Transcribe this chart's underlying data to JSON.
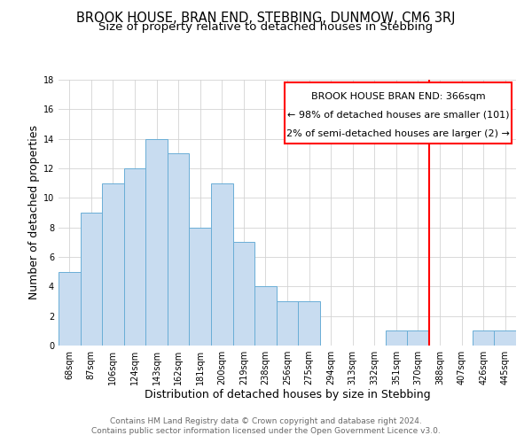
{
  "title": "BROOK HOUSE, BRAN END, STEBBING, DUNMOW, CM6 3RJ",
  "subtitle": "Size of property relative to detached houses in Stebbing",
  "xlabel": "Distribution of detached houses by size in Stebbing",
  "ylabel": "Number of detached properties",
  "bin_labels": [
    "68sqm",
    "87sqm",
    "106sqm",
    "124sqm",
    "143sqm",
    "162sqm",
    "181sqm",
    "200sqm",
    "219sqm",
    "238sqm",
    "256sqm",
    "275sqm",
    "294sqm",
    "313sqm",
    "332sqm",
    "351sqm",
    "370sqm",
    "388sqm",
    "407sqm",
    "426sqm",
    "445sqm"
  ],
  "bar_values": [
    5,
    9,
    11,
    12,
    14,
    13,
    8,
    11,
    7,
    4,
    3,
    3,
    0,
    0,
    0,
    1,
    1,
    0,
    0,
    1,
    1
  ],
  "bar_color": "#c8dcf0",
  "bar_edge_color": "#6aaed6",
  "vline_x": 16.5,
  "vline_color": "red",
  "ylim": [
    0,
    18
  ],
  "annotation_title": "BROOK HOUSE BRAN END: 366sqm",
  "annotation_line1": "← 98% of detached houses are smaller (101)",
  "annotation_line2": "2% of semi-detached houses are larger (2) →",
  "annotation_box_color": "red",
  "footer_line1": "Contains HM Land Registry data © Crown copyright and database right 2024.",
  "footer_line2": "Contains public sector information licensed under the Open Government Licence v3.0.",
  "title_fontsize": 10.5,
  "subtitle_fontsize": 9.5,
  "axis_label_fontsize": 9,
  "tick_fontsize": 7,
  "footer_fontsize": 6.5,
  "annotation_fontsize": 8
}
